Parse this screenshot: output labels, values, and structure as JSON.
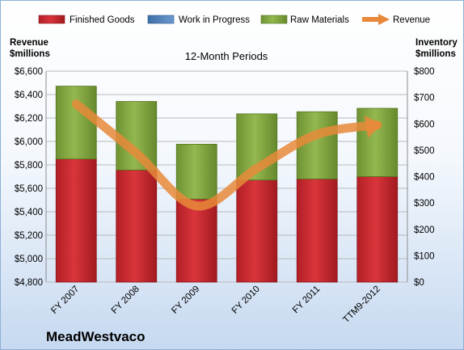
{
  "chart_data": {
    "type": "bar",
    "stacked": true,
    "title": "12-Month Periods",
    "company": "MeadWestvaco",
    "left_axis_label": [
      "Revenue",
      "$millions"
    ],
    "right_axis_label": [
      "Inventory",
      "$millions"
    ],
    "categories": [
      "FY 2007",
      "FY 2008",
      "FY 2009",
      "FY 2010",
      "FY 2011",
      "TTM9-2012"
    ],
    "left_ylim": [
      4800,
      6600
    ],
    "left_ticks": [
      "$4,800",
      "$5,000",
      "$5,200",
      "$5,400",
      "$5,600",
      "$5,800",
      "$6,000",
      "$6,200",
      "$6,400",
      "$6,600"
    ],
    "right_ylim": [
      0,
      800
    ],
    "right_ticks": [
      "$0",
      "$100",
      "$200",
      "$300",
      "$400",
      "$500",
      "$600",
      "$700",
      "$800"
    ],
    "grid": "horizontal",
    "legend_position": "top",
    "series": [
      {
        "name": "Finished Goods",
        "color": "#c0262d",
        "axis": "right",
        "values": [
          467,
          425,
          315,
          387,
          391,
          400
        ]
      },
      {
        "name": "Work in Progress",
        "color": "#4f81bd",
        "axis": "right",
        "values": [
          0,
          0,
          0,
          0,
          0,
          0
        ]
      },
      {
        "name": "Raw Materials",
        "color": "#7fa33d",
        "axis": "right",
        "values": [
          276,
          260,
          208,
          251,
          255,
          259
        ]
      },
      {
        "name": "Revenue",
        "color": "#e8893a",
        "axis": "left",
        "type": "line",
        "values": [
          6320,
          5900,
          5450,
          5770,
          6060,
          6140
        ]
      }
    ]
  }
}
